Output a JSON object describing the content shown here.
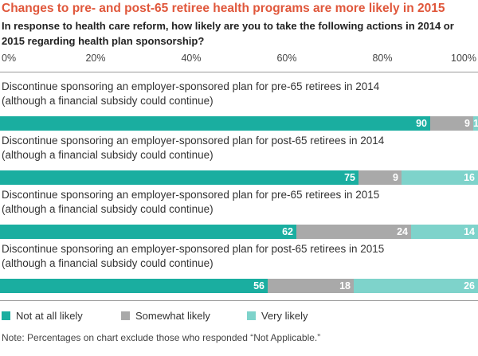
{
  "chart_data": {
    "type": "bar",
    "orientation": "horizontal",
    "stacked": true,
    "title": "Changes to pre- and post-65 retiree health programs are more likely in 2015",
    "subtitle": "In response to health care reform, how likely are you to take the following actions in 2014 or 2015 regarding health plan sponsorship?",
    "x_ticks": [
      "0%",
      "20%",
      "40%",
      "60%",
      "80%",
      "100%"
    ],
    "xlim": [
      0,
      100
    ],
    "categories": [
      [
        "Discontinue sponsoring an employer-sponsored plan for pre-65 retirees in 2014",
        "(although a financial subsidy could continue)"
      ],
      [
        "Discontinue sponsoring an employer-sponsored plan for post-65 retirees in 2014",
        "(although a financial subsidy could continue)"
      ],
      [
        "Discontinue sponsoring an employer-sponsored plan for pre-65 retirees in 2015",
        "(although a financial subsidy could continue)"
      ],
      [
        "Discontinue sponsoring an employer-sponsored plan for post-65 retirees in 2015",
        "(although a financial subsidy could continue)"
      ]
    ],
    "series": [
      {
        "name": "Not at all likely",
        "color": "#1aaea0",
        "values": [
          90,
          75,
          62,
          56
        ]
      },
      {
        "name": "Somewhat likely",
        "color": "#a9a9a9",
        "values": [
          9,
          9,
          24,
          18
        ]
      },
      {
        "name": "Very likely",
        "color": "#7ed3cb",
        "values": [
          1,
          16,
          14,
          26
        ]
      }
    ],
    "legend_position": "bottom-left",
    "note": "Note: Percentages on chart exclude those who responded “Not Applicable.”"
  }
}
